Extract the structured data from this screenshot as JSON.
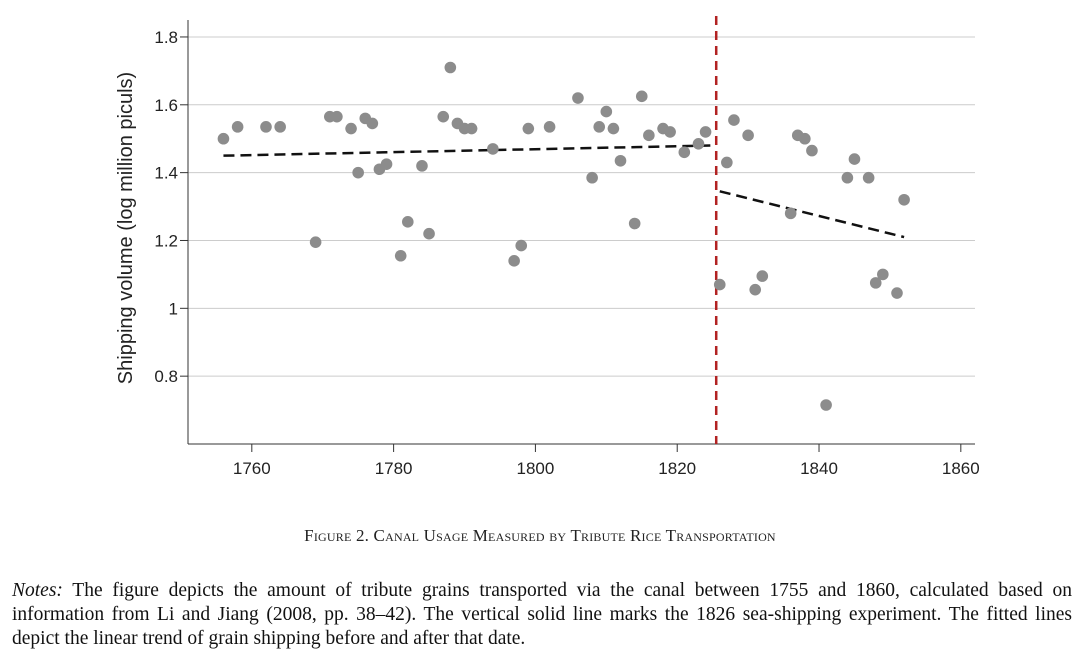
{
  "figure": {
    "caption_label": "Figure 2.",
    "caption_title": "Canal Usage Measured by Tribute Rice Transportation",
    "notes_label": "Notes:",
    "notes_text": "The figure depicts the amount of tribute grains transported via the canal between 1755 and 1860, calculated based on information from Li and Jiang (2008, pp. 38–42). The vertical solid line marks the 1826 sea-shipping experiment. The fitted lines depict the linear trend of grain shipping before and after that date."
  },
  "chart_data": {
    "type": "scatter",
    "title": "",
    "xlabel": "",
    "ylabel": "Shipping volume (log million piculs)",
    "xlim": [
      1751,
      1862
    ],
    "ylim": [
      0.6,
      1.85
    ],
    "xticks": [
      1760,
      1780,
      1800,
      1820,
      1840,
      1860
    ],
    "xtick_labels": [
      "1760",
      "1780",
      "1800",
      "1820",
      "1840",
      "1860"
    ],
    "yticks": [
      0.8,
      1.0,
      1.2,
      1.4,
      1.6,
      1.8
    ],
    "ytick_labels": [
      "0.8",
      "1",
      "1.2",
      "1.4",
      "1.6",
      "1.8"
    ],
    "grid": "horizontal",
    "legend": "none",
    "colors": {
      "points": "#8c8c8c",
      "fit_lines": "#111111",
      "vertical_line": "#b22222",
      "grid": "#cccccc"
    },
    "points": [
      [
        1756,
        1.5
      ],
      [
        1758,
        1.535
      ],
      [
        1762,
        1.535
      ],
      [
        1764,
        1.535
      ],
      [
        1769,
        1.195
      ],
      [
        1771,
        1.565
      ],
      [
        1772,
        1.565
      ],
      [
        1774,
        1.53
      ],
      [
        1775,
        1.4
      ],
      [
        1776,
        1.56
      ],
      [
        1777,
        1.545
      ],
      [
        1778,
        1.41
      ],
      [
        1779,
        1.425
      ],
      [
        1781,
        1.155
      ],
      [
        1782,
        1.255
      ],
      [
        1784,
        1.42
      ],
      [
        1785,
        1.22
      ],
      [
        1787,
        1.565
      ],
      [
        1788,
        1.71
      ],
      [
        1789,
        1.545
      ],
      [
        1790,
        1.53
      ],
      [
        1791,
        1.53
      ],
      [
        1794,
        1.47
      ],
      [
        1797,
        1.14
      ],
      [
        1798,
        1.185
      ],
      [
        1799,
        1.53
      ],
      [
        1802,
        1.535
      ],
      [
        1806,
        1.62
      ],
      [
        1808,
        1.385
      ],
      [
        1809,
        1.535
      ],
      [
        1810,
        1.58
      ],
      [
        1811,
        1.53
      ],
      [
        1812,
        1.435
      ],
      [
        1814,
        1.25
      ],
      [
        1815,
        1.625
      ],
      [
        1816,
        1.51
      ],
      [
        1818,
        1.53
      ],
      [
        1819,
        1.52
      ],
      [
        1821,
        1.46
      ],
      [
        1823,
        1.485
      ],
      [
        1824,
        1.52
      ],
      [
        1826,
        1.07
      ],
      [
        1827,
        1.43
      ],
      [
        1828,
        1.555
      ],
      [
        1830,
        1.51
      ],
      [
        1831,
        1.055
      ],
      [
        1832,
        1.095
      ],
      [
        1836,
        1.28
      ],
      [
        1837,
        1.51
      ],
      [
        1838,
        1.5
      ],
      [
        1839,
        1.465
      ],
      [
        1841,
        0.715
      ],
      [
        1844,
        1.385
      ],
      [
        1845,
        1.44
      ],
      [
        1847,
        1.385
      ],
      [
        1848,
        1.075
      ],
      [
        1849,
        1.1
      ],
      [
        1851,
        1.045
      ],
      [
        1852,
        1.32
      ]
    ],
    "fit_lines": [
      {
        "x": [
          1756,
          1825
        ],
        "y": [
          1.45,
          1.48
        ]
      },
      {
        "x": [
          1826,
          1852
        ],
        "y": [
          1.345,
          1.21
        ]
      }
    ],
    "vertical_line": {
      "x": 1825.5
    }
  }
}
